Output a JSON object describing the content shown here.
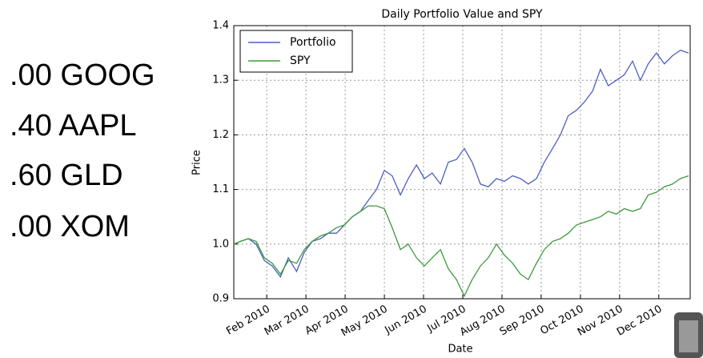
{
  "allocations": [
    ".00 GOOG",
    ".40 AAPL",
    ".60 GLD",
    ".00 XOM"
  ],
  "chart_data": {
    "type": "line",
    "title": "Daily Portfolio Value and SPY",
    "xlabel": "Date",
    "ylabel": "Price",
    "x": [
      0.16,
      0.33,
      0.53,
      0.73,
      0.94,
      1.14,
      1.35,
      1.55,
      1.76,
      1.96,
      2.16,
      2.37,
      2.57,
      2.78,
      2.98,
      3.18,
      3.39,
      3.59,
      3.8,
      4.0,
      4.2,
      4.41,
      4.61,
      4.82,
      5.02,
      5.22,
      5.43,
      5.63,
      5.84,
      6.04,
      6.24,
      6.45,
      6.65,
      6.86,
      7.06,
      7.27,
      7.47,
      7.67,
      7.88,
      8.08,
      8.29,
      8.49,
      8.69,
      8.9,
      9.1,
      9.31,
      9.51,
      9.71,
      9.92,
      10.12,
      10.33,
      10.53,
      10.73,
      10.94,
      11.14,
      11.35,
      11.55,
      11.76
    ],
    "series": [
      {
        "name": "Portfolio",
        "color": "#4b5fc4",
        "values": [
          1.0,
          1.005,
          1.01,
          1.0,
          0.97,
          0.96,
          0.94,
          0.975,
          0.95,
          0.985,
          1.005,
          1.01,
          1.02,
          1.02,
          1.035,
          1.05,
          1.06,
          1.08,
          1.1,
          1.135,
          1.125,
          1.09,
          1.12,
          1.145,
          1.12,
          1.13,
          1.11,
          1.15,
          1.155,
          1.175,
          1.15,
          1.11,
          1.105,
          1.12,
          1.115,
          1.125,
          1.12,
          1.11,
          1.12,
          1.15,
          1.175,
          1.2,
          1.235,
          1.245,
          1.26,
          1.28,
          1.32,
          1.29,
          1.3,
          1.31,
          1.335,
          1.3,
          1.33,
          1.35,
          1.33,
          1.345,
          1.355,
          1.35
        ]
      },
      {
        "name": "SPY",
        "color": "#3c9a3c",
        "values": [
          1.0,
          1.005,
          1.01,
          1.005,
          0.975,
          0.965,
          0.945,
          0.97,
          0.965,
          0.99,
          1.005,
          1.015,
          1.02,
          1.03,
          1.035,
          1.05,
          1.06,
          1.07,
          1.07,
          1.065,
          1.03,
          0.99,
          1.0,
          0.975,
          0.96,
          0.975,
          0.99,
          0.955,
          0.935,
          0.905,
          0.935,
          0.96,
          0.975,
          1.0,
          0.98,
          0.965,
          0.945,
          0.935,
          0.965,
          0.99,
          1.005,
          1.01,
          1.02,
          1.035,
          1.04,
          1.045,
          1.05,
          1.06,
          1.055,
          1.065,
          1.06,
          1.065,
          1.09,
          1.095,
          1.105,
          1.11,
          1.12,
          1.125
        ]
      }
    ],
    "xlim": [
      0.16,
      11.8
    ],
    "xticks": [
      {
        "value": 1,
        "label": "Feb 2010"
      },
      {
        "value": 2,
        "label": "Mar 2010"
      },
      {
        "value": 3,
        "label": "Apr 2010"
      },
      {
        "value": 4,
        "label": "May 2010"
      },
      {
        "value": 5,
        "label": "Jun 2010"
      },
      {
        "value": 6,
        "label": "Jul 2010"
      },
      {
        "value": 7,
        "label": "Aug 2010"
      },
      {
        "value": 8,
        "label": "Sep 2010"
      },
      {
        "value": 9,
        "label": "Oct 2010"
      },
      {
        "value": 10,
        "label": "Nov 2010"
      },
      {
        "value": 11,
        "label": "Dec 2010"
      }
    ],
    "ylim": [
      0.9,
      1.4
    ],
    "yticks": [
      0.9,
      {
        "value": 1,
        "label": "1.0"
      },
      1.1,
      1.2,
      1.3,
      1.4
    ],
    "grid": true,
    "legend": "upper left"
  }
}
